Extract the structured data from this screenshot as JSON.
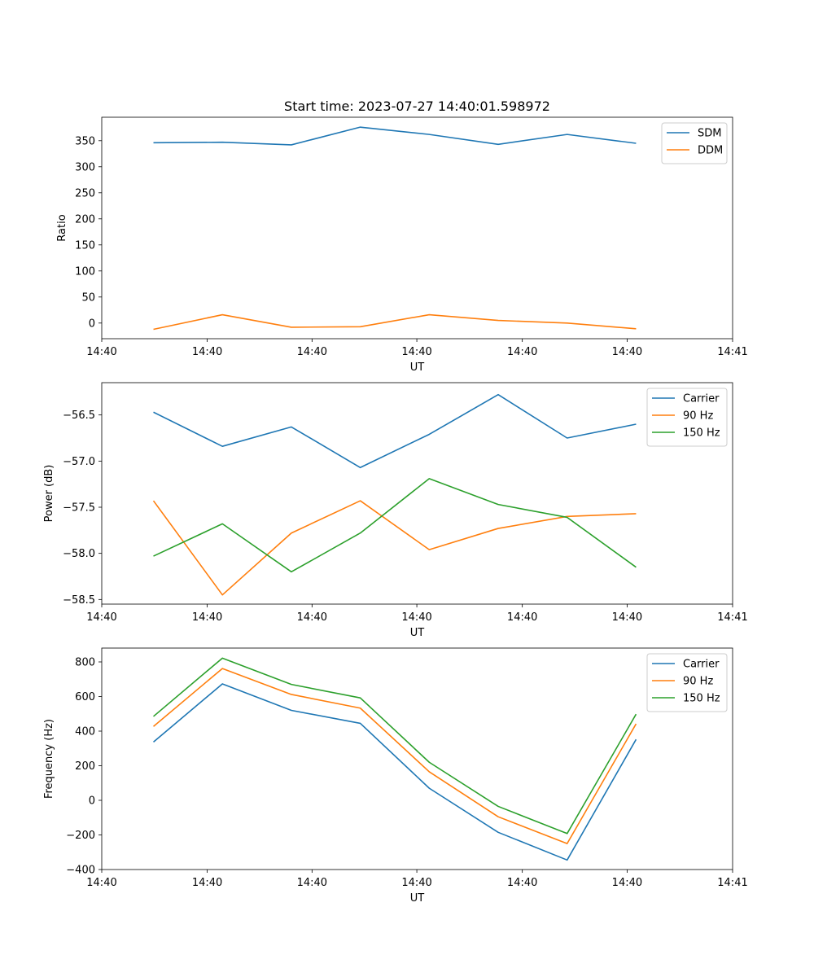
{
  "figure_title": "Start time: 2023-07-27 14:40:01.598972",
  "chart_data": [
    {
      "type": "line",
      "title": "Start time: 2023-07-27 14:40:01.598972",
      "xlabel": "UT",
      "ylabel": "Ratio",
      "x_index": [
        0,
        1,
        2,
        3,
        4,
        5,
        6,
        7
      ],
      "xlim": [
        -0.75,
        8.4
      ],
      "ylim": [
        -30,
        395
      ],
      "x_ticks": [
        -0.75,
        0.78,
        2.3,
        3.82,
        5.35,
        6.87,
        8.4
      ],
      "x_tick_labels": [
        "14:40",
        "14:40",
        "14:40",
        "14:40",
        "14:40",
        "14:40",
        "14:41"
      ],
      "y_ticks": [
        0,
        50,
        100,
        150,
        200,
        250,
        300,
        350
      ],
      "y_tick_labels": [
        "0",
        "50",
        "100",
        "150",
        "200",
        "250",
        "300",
        "350"
      ],
      "legend_position": "top-right",
      "series": [
        {
          "name": "SDM",
          "color": "#1f77b4",
          "values": [
            346,
            347,
            342,
            376,
            362,
            343,
            362,
            345
          ]
        },
        {
          "name": "DDM",
          "color": "#ff7f0e",
          "values": [
            -12,
            16,
            -8,
            -7,
            16,
            5,
            0,
            -11
          ]
        }
      ]
    },
    {
      "type": "line",
      "xlabel": "UT",
      "ylabel": "Power (dB)",
      "x_index": [
        0,
        1,
        2,
        3,
        4,
        5,
        6,
        7
      ],
      "xlim": [
        -0.75,
        8.4
      ],
      "ylim": [
        -58.55,
        -56.15
      ],
      "x_ticks": [
        -0.75,
        0.78,
        2.3,
        3.82,
        5.35,
        6.87,
        8.4
      ],
      "x_tick_labels": [
        "14:40",
        "14:40",
        "14:40",
        "14:40",
        "14:40",
        "14:40",
        "14:41"
      ],
      "y_ticks": [
        -58.5,
        -58.0,
        -57.5,
        -57.0,
        -56.5
      ],
      "y_tick_labels": [
        "−58.5",
        "−58.0",
        "−57.5",
        "−57.0",
        "−56.5"
      ],
      "legend_position": "top-right",
      "series": [
        {
          "name": "Carrier",
          "color": "#1f77b4",
          "values": [
            -56.47,
            -56.84,
            -56.63,
            -57.07,
            -56.71,
            -56.28,
            -56.75,
            -56.6
          ]
        },
        {
          "name": "90 Hz",
          "color": "#ff7f0e",
          "values": [
            -57.43,
            -58.45,
            -57.78,
            -57.43,
            -57.96,
            -57.73,
            -57.6,
            -57.57
          ]
        },
        {
          "name": "150 Hz",
          "color": "#2ca02c",
          "values": [
            -58.03,
            -57.68,
            -58.2,
            -57.78,
            -57.19,
            -57.47,
            -57.61,
            -58.15
          ]
        }
      ]
    },
    {
      "type": "line",
      "xlabel": "UT",
      "ylabel": "Frequency (Hz)",
      "x_index": [
        0,
        1,
        2,
        3,
        4,
        5,
        6,
        7
      ],
      "xlim": [
        -0.75,
        8.4
      ],
      "ylim": [
        -400,
        880
      ],
      "x_ticks": [
        -0.75,
        0.78,
        2.3,
        3.82,
        5.35,
        6.87,
        8.4
      ],
      "x_tick_labels": [
        "14:40",
        "14:40",
        "14:40",
        "14:40",
        "14:40",
        "14:40",
        "14:41"
      ],
      "y_ticks": [
        -400,
        -200,
        0,
        200,
        400,
        600,
        800
      ],
      "y_tick_labels": [
        "−400",
        "−200",
        "0",
        "200",
        "400",
        "600",
        "800"
      ],
      "legend_position": "top-right",
      "series": [
        {
          "name": "Carrier",
          "color": "#1f77b4",
          "values": [
            337,
            673,
            520,
            445,
            70,
            -185,
            -345,
            352
          ]
        },
        {
          "name": "90 Hz",
          "color": "#ff7f0e",
          "values": [
            427,
            762,
            612,
            533,
            165,
            -95,
            -250,
            442
          ]
        },
        {
          "name": "150 Hz",
          "color": "#2ca02c",
          "values": [
            485,
            822,
            670,
            592,
            220,
            -35,
            -192,
            498
          ]
        }
      ]
    }
  ]
}
